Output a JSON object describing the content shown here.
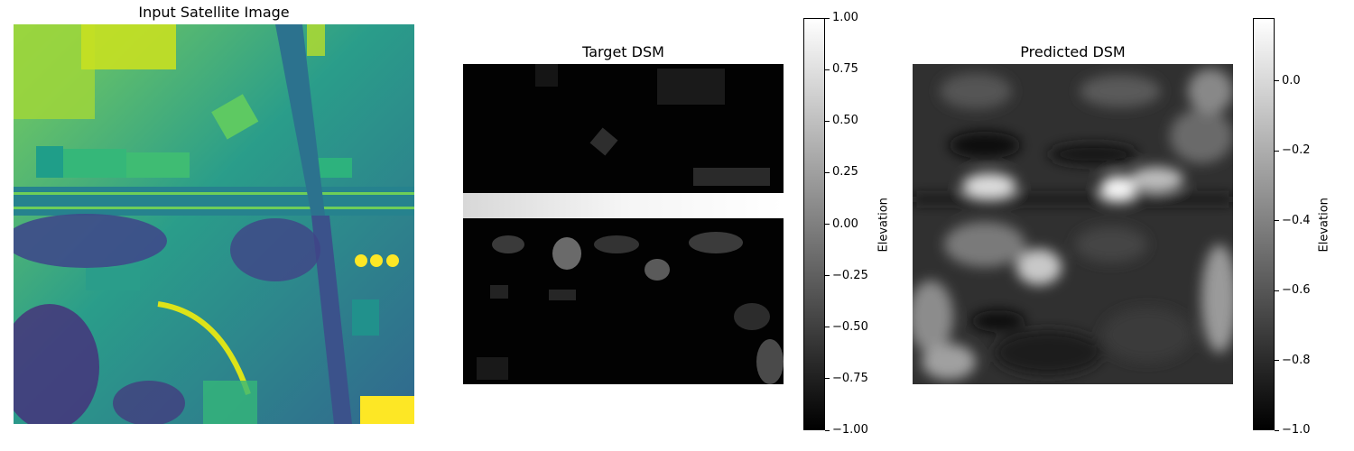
{
  "chart_data": [
    {
      "type": "image",
      "title": "Input Satellite Image",
      "colormap": "viridis"
    },
    {
      "type": "heatmap",
      "title": "Target DSM",
      "colormap": "gray",
      "colorbar": {
        "label": "Elevation",
        "range": [
          -1.0,
          1.0
        ],
        "ticks": [
          "1.00",
          "0.75",
          "0.50",
          "0.25",
          "0.00",
          "−0.25",
          "−0.50",
          "−0.75",
          "−1.00"
        ]
      }
    },
    {
      "type": "heatmap",
      "title": "Predicted DSM",
      "colormap": "gray",
      "colorbar": {
        "label": "Elevation",
        "range": [
          -1.0,
          0.18
        ],
        "ticks": [
          "0.0",
          "−0.2",
          "−0.4",
          "−0.6",
          "−0.8",
          "−1.0"
        ]
      }
    }
  ]
}
